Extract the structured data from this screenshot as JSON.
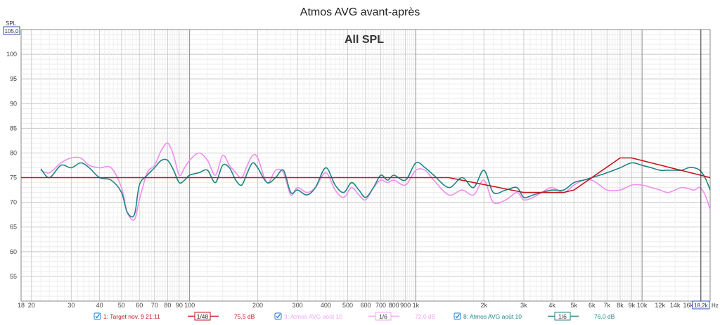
{
  "chart_data": {
    "type": "line",
    "title": "Atmos AVG avant-après",
    "subtitle": "All SPL",
    "x_scale": "log",
    "xlim": [
      18,
      20000
    ],
    "ylim": [
      50,
      105
    ],
    "ylabel": "SPL",
    "y_top_readout": "105,0",
    "x_unit": "Hz",
    "x_cursor_readout": "18,2k",
    "grid": true,
    "x_ticks": [
      {
        "v": 18,
        "l": "18"
      },
      {
        "v": 20,
        "l": "20"
      },
      {
        "v": 30,
        "l": "30"
      },
      {
        "v": 40,
        "l": "40"
      },
      {
        "v": 50,
        "l": "50"
      },
      {
        "v": 60,
        "l": "60"
      },
      {
        "v": 70,
        "l": "70"
      },
      {
        "v": 80,
        "l": "80"
      },
      {
        "v": 90,
        "l": "90"
      },
      {
        "v": 100,
        "l": "100"
      },
      {
        "v": 200,
        "l": "200"
      },
      {
        "v": 300,
        "l": "300"
      },
      {
        "v": 400,
        "l": "400"
      },
      {
        "v": 500,
        "l": "500"
      },
      {
        "v": 600,
        "l": "600"
      },
      {
        "v": 700,
        "l": "700"
      },
      {
        "v": 800,
        "l": "800"
      },
      {
        "v": 900,
        "l": "900"
      },
      {
        "v": 1000,
        "l": "1k"
      },
      {
        "v": 2000,
        "l": "2k"
      },
      {
        "v": 3000,
        "l": "3k"
      },
      {
        "v": 4000,
        "l": "4k"
      },
      {
        "v": 5000,
        "l": "5k"
      },
      {
        "v": 6000,
        "l": "6k"
      },
      {
        "v": 7000,
        "l": "7k"
      },
      {
        "v": 8000,
        "l": "8k"
      },
      {
        "v": 9000,
        "l": "9k"
      },
      {
        "v": 10000,
        "l": "10k"
      },
      {
        "v": 12000,
        "l": "12k"
      },
      {
        "v": 14000,
        "l": "14k"
      },
      {
        "v": 16000,
        "l": "16k"
      }
    ],
    "y_ticks": [
      55,
      60,
      65,
      70,
      75,
      80,
      85,
      90,
      95,
      100
    ],
    "cursor_x": 18200,
    "series": [
      {
        "name": "1: Target nov. 9 21:11",
        "color": "#c0161e",
        "legend_color": "#c0161e",
        "smoothing": "1/48",
        "level": "75,5 dB",
        "x": [
          18,
          1400,
          3000,
          4500,
          5000,
          8000,
          9000,
          20000
        ],
        "y": [
          75,
          75,
          72,
          72,
          72.5,
          79,
          79,
          75
        ]
      },
      {
        "name": "3: Atmos AVG août 10",
        "color": "#f08ef0",
        "legend_color": "#f4a6f4",
        "smoothing": "1/6",
        "level": "72,0 dB",
        "x": [
          22,
          24,
          27,
          30,
          33,
          36,
          40,
          45,
          50,
          53,
          57,
          60,
          65,
          70,
          75,
          80,
          85,
          90,
          95,
          100,
          110,
          120,
          130,
          140,
          150,
          160,
          170,
          180,
          190,
          200,
          220,
          240,
          260,
          280,
          300,
          330,
          360,
          400,
          440,
          480,
          520,
          560,
          600,
          650,
          700,
          750,
          800,
          900,
          1000,
          1100,
          1200,
          1400,
          1600,
          1800,
          2000,
          2200,
          2500,
          2800,
          3000,
          3300,
          3600,
          4000,
          4500,
          5000,
          5500,
          6000,
          6500,
          7000,
          8000,
          9000,
          10000,
          11000,
          12000,
          13000,
          14000,
          15000,
          16000,
          17000,
          18000,
          19000,
          20000
        ],
        "y": [
          76.5,
          76.0,
          78.0,
          79.0,
          79.0,
          77.5,
          77.0,
          77.0,
          73.0,
          68.0,
          66.5,
          70.5,
          76.0,
          77.5,
          80.5,
          82.0,
          79.5,
          75.5,
          77.0,
          78.5,
          80.0,
          78.5,
          75.5,
          79.5,
          77.5,
          76.0,
          75.0,
          77.5,
          79.5,
          79.0,
          74.0,
          76.5,
          76.0,
          71.5,
          73.0,
          72.0,
          73.0,
          76.0,
          72.5,
          71.0,
          73.0,
          71.5,
          70.5,
          73.0,
          74.5,
          74.0,
          74.5,
          73.5,
          76.5,
          76.5,
          74.5,
          71.5,
          72.5,
          71.5,
          74.5,
          70.0,
          70.5,
          72.0,
          70.5,
          71.0,
          72.0,
          73.0,
          72.0,
          73.5,
          74.5,
          74.5,
          73.5,
          72.5,
          72.5,
          73.5,
          73.5,
          73.0,
          72.5,
          72.0,
          72.5,
          73.0,
          72.8,
          72.5,
          73.0,
          71.5,
          68.5
        ]
      },
      {
        "name": "8: Atmos AVG août 10",
        "color": "#1e8585",
        "legend_color": "#1e8585",
        "smoothing": "1/6",
        "level": "76,0 dB",
        "x": [
          22,
          24,
          27,
          30,
          33,
          36,
          40,
          45,
          50,
          53,
          57,
          60,
          65,
          70,
          75,
          80,
          85,
          90,
          95,
          100,
          110,
          120,
          130,
          140,
          150,
          160,
          170,
          180,
          190,
          200,
          220,
          240,
          260,
          280,
          300,
          330,
          360,
          400,
          440,
          480,
          520,
          560,
          600,
          650,
          700,
          750,
          800,
          900,
          1000,
          1100,
          1200,
          1400,
          1600,
          1800,
          2000,
          2200,
          2500,
          2800,
          3000,
          3300,
          3600,
          4000,
          4500,
          5000,
          5500,
          6000,
          6500,
          7000,
          8000,
          9000,
          10000,
          11000,
          12000,
          13000,
          14000,
          15000,
          16000,
          17000,
          18000,
          19000,
          20000
        ],
        "y": [
          76.8,
          75.0,
          77.5,
          77.0,
          78.0,
          77.0,
          75.0,
          74.5,
          72.0,
          68.0,
          67.5,
          73.5,
          75.5,
          77.0,
          78.5,
          78.5,
          76.5,
          74.0,
          74.5,
          75.5,
          76.0,
          76.5,
          74.0,
          77.5,
          77.0,
          74.5,
          73.5,
          76.0,
          78.0,
          77.0,
          74.0,
          75.0,
          76.5,
          72.0,
          72.5,
          71.5,
          73.0,
          77.0,
          73.5,
          72.0,
          74.0,
          72.5,
          71.0,
          73.0,
          75.5,
          74.5,
          75.5,
          74.5,
          78.0,
          77.0,
          75.5,
          73.0,
          75.0,
          73.0,
          76.5,
          72.0,
          72.5,
          73.0,
          71.0,
          71.5,
          72.0,
          72.5,
          72.5,
          74.0,
          74.5,
          75.0,
          75.5,
          76.0,
          77.0,
          78.0,
          77.5,
          77.0,
          76.5,
          76.5,
          76.5,
          76.5,
          77.0,
          77.0,
          76.5,
          75.0,
          72.5
        ]
      }
    ]
  }
}
